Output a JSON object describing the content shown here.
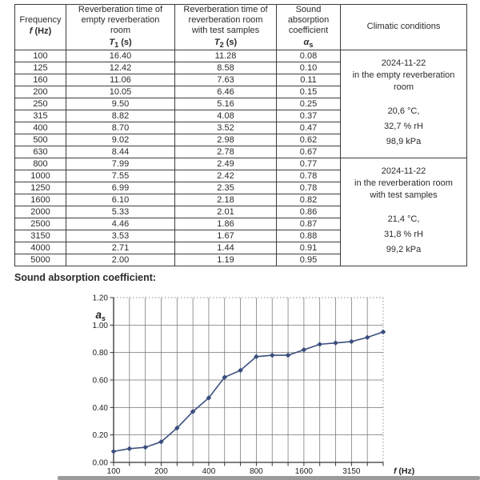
{
  "table": {
    "headers": [
      {
        "title": "Frequency",
        "symbol": "f",
        "sub": "",
        "unit": " (Hz)"
      },
      {
        "title": "Reverberation time of\nempty reverberation\nroom",
        "symbol": "T",
        "sub": "1",
        "unit": " (s)"
      },
      {
        "title": "Reverberation time of\nreverberation room\nwith test samples",
        "symbol": "T",
        "sub": "2",
        "unit": " (s)"
      },
      {
        "title": "Sound\nabsorption\ncoefficient",
        "symbol": "α",
        "sub": "s",
        "unit": ""
      },
      {
        "title": "Climatic conditions",
        "symbol": "",
        "sub": "",
        "unit": ""
      }
    ],
    "rows": [
      [
        "100",
        "16.40",
        "11.28",
        "0.08"
      ],
      [
        "125",
        "12.42",
        "8.58",
        "0.10"
      ],
      [
        "160",
        "11.06",
        "7.63",
        "0.11"
      ],
      [
        "200",
        "10.05",
        "6.46",
        "0.15"
      ],
      [
        "250",
        "9.50",
        "5.16",
        "0.25"
      ],
      [
        "315",
        "8.82",
        "4.08",
        "0.37"
      ],
      [
        "400",
        "8.70",
        "3.52",
        "0.47"
      ],
      [
        "500",
        "9.02",
        "2.98",
        "0.62"
      ],
      [
        "630",
        "8.44",
        "2.78",
        "0.67"
      ],
      [
        "800",
        "7.99",
        "2.49",
        "0.77"
      ],
      [
        "1000",
        "7.55",
        "2.42",
        "0.78"
      ],
      [
        "1250",
        "6.99",
        "2.35",
        "0.78"
      ],
      [
        "1600",
        "6.10",
        "2.18",
        "0.82"
      ],
      [
        "2000",
        "5.33",
        "2.01",
        "0.86"
      ],
      [
        "2500",
        "4.46",
        "1.86",
        "0.87"
      ],
      [
        "3150",
        "3.53",
        "1.67",
        "0.88"
      ],
      [
        "4000",
        "2.71",
        "1.44",
        "0.91"
      ],
      [
        "5000",
        "2.00",
        "1.19",
        "0.95"
      ]
    ],
    "climatic": [
      {
        "date": "2024-11-22",
        "location": "in the empty reverberation\nroom",
        "temperature": "20,6 °C,",
        "humidity": "32,7 % rH",
        "pressure": "98,9 kPa"
      },
      {
        "date": "2024-11-22",
        "location": "in the reverberation room\nwith test samples",
        "temperature": "21,4 °C,",
        "humidity": "31,8 % rH",
        "pressure": "99,2 kPa"
      }
    ]
  },
  "chart_data": {
    "type": "line",
    "title": "Sound absorption coefficient:",
    "x": [
      100,
      125,
      160,
      200,
      250,
      315,
      400,
      500,
      630,
      800,
      1000,
      1250,
      1600,
      2000,
      2500,
      3150,
      4000,
      5000
    ],
    "values": [
      0.08,
      0.1,
      0.11,
      0.15,
      0.25,
      0.37,
      0.47,
      0.62,
      0.67,
      0.77,
      0.78,
      0.78,
      0.82,
      0.86,
      0.87,
      0.88,
      0.91,
      0.95
    ],
    "xlabel_symbol": "f",
    "xlabel_unit": " (Hz)",
    "ylabel_symbol": "a",
    "ylabel_sub": "s",
    "ytick_labels": [
      "0.00",
      "0.20",
      "0.40",
      "0.60",
      "0.80",
      "1.00",
      "1.20"
    ],
    "xtick_labels": [
      "100",
      "200",
      "400",
      "800",
      "1600",
      "3150"
    ],
    "xtick_label_indices": [
      0,
      3,
      6,
      9,
      12,
      15
    ],
    "ylim": [
      0,
      1.2
    ],
    "xscale": "log-third-octave",
    "grid": true,
    "legend": "none",
    "line_color": "#3a4e7d",
    "grid_color": "#757575",
    "axis_color": "#333333"
  }
}
